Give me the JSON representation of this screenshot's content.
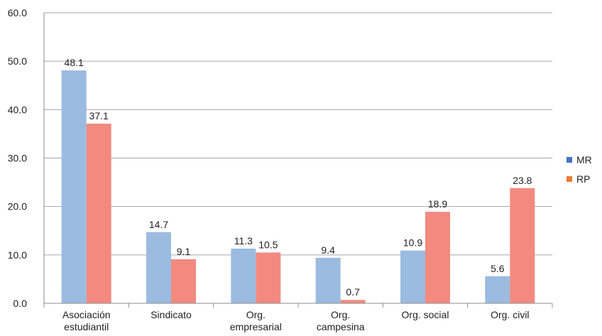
{
  "chart_data": {
    "type": "bar",
    "title": "",
    "xlabel": "",
    "ylabel": "",
    "ylim": [
      0,
      60
    ],
    "yticks": [
      "0.0",
      "10.0",
      "20.0",
      "30.0",
      "40.0",
      "50.0",
      "60.0"
    ],
    "grid": true,
    "legend_position": "right",
    "categories": [
      [
        "Asociación",
        "estudiantil"
      ],
      [
        "Sindicato"
      ],
      [
        "Org.",
        "empresarial"
      ],
      [
        "Org.",
        "campesina"
      ],
      [
        "Org. social"
      ],
      [
        "Org. civil"
      ]
    ],
    "series": [
      {
        "name": "MR",
        "values": [
          48.1,
          14.7,
          11.3,
          9.4,
          10.9,
          5.6
        ],
        "labels": [
          "48.1",
          "14.7",
          "11.3",
          "9.4",
          "10.9",
          "5.6"
        ],
        "color": "#9bbbe0",
        "legend_color": "#4472c4"
      },
      {
        "name": "RP",
        "values": [
          37.1,
          9.1,
          10.5,
          0.7,
          18.9,
          23.8
        ],
        "labels": [
          "37.1",
          "9.1",
          "10.5",
          "0.7",
          "18.9",
          "23.8"
        ],
        "color": "#f28a80",
        "legend_color": "#ed7d31"
      }
    ]
  }
}
